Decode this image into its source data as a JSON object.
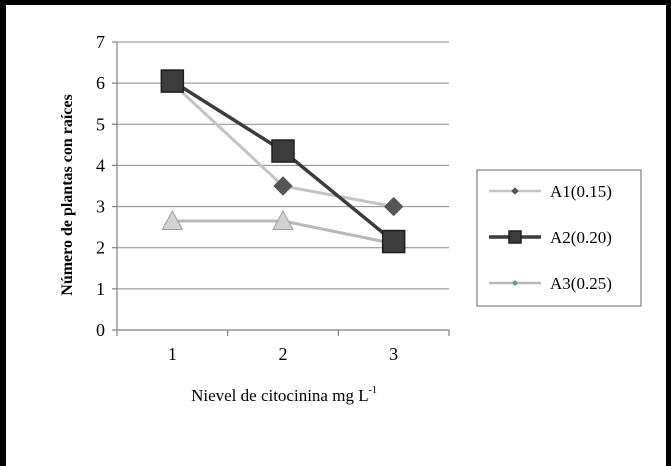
{
  "chart_data": {
    "type": "line",
    "title": "",
    "xlabel": "Nievel de citocinina mg L",
    "xlabel_superscript": "-1",
    "ylabel": "Número de plantas con raíces",
    "categories": [
      "1",
      "2",
      "3"
    ],
    "ylim": [
      0,
      7
    ],
    "yticks": [
      "0",
      "1",
      "2",
      "3",
      "4",
      "5",
      "6",
      "7"
    ],
    "grid": true,
    "legend_position": "right",
    "series": [
      {
        "name": "A1(0.15)",
        "values": [
          6.0,
          3.5,
          3.0
        ],
        "color": "#c4c4c4",
        "marker_color": "#555555",
        "marker": "diamond"
      },
      {
        "name": "A2(0.20)",
        "values": [
          6.05,
          4.35,
          2.15
        ],
        "color": "#3c3c3c",
        "marker_color": "#3c3c3c",
        "marker": "square"
      },
      {
        "name": "A3(0.25)",
        "values": [
          2.65,
          2.65,
          2.1
        ],
        "color": "#b8b8b8",
        "marker_color": "#d2d2d2",
        "marker": "triangle"
      }
    ]
  }
}
